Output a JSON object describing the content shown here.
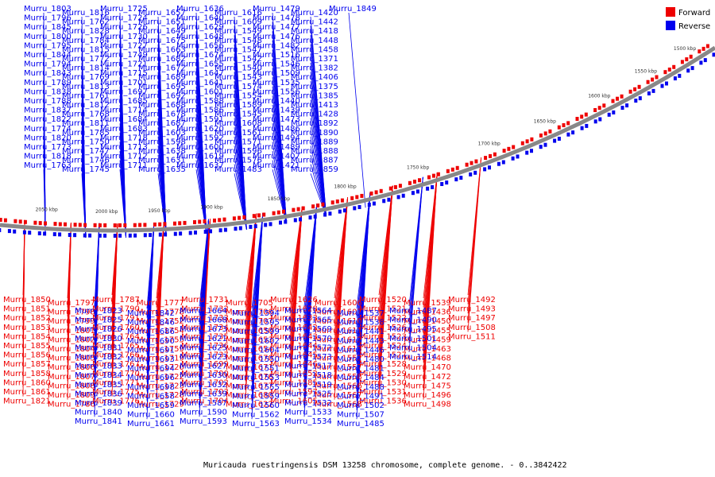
{
  "caption": "Muricauda ruestringensis DSM 13258 chromosome, complete genome. - 0..3842422",
  "legend": [
    {
      "label": "Forward",
      "color": "#ee0000"
    },
    {
      "label": "Reverse",
      "color": "#0000ee"
    }
  ],
  "colors": {
    "forward": "#ee0000",
    "reverse": "#0000ee",
    "backbone": "#888888",
    "line_forward": "#ee0000",
    "line_reverse": "#0000ee"
  },
  "ticks": [
    "2050 kbp",
    "2000 kbp",
    "1950 kbp",
    "1900 kbp",
    "1850 kbp",
    "1800 kbp",
    "1750 kbp",
    "1700 kbp",
    "1650 kbp",
    "1600 kbp",
    "1550 kbp",
    "1500 kbp"
  ],
  "reverse_genes": [
    "Murru_1803",
    "Murru_1796",
    "Murru_1845",
    "Murru_1800",
    "Murru_1795",
    "Murru_1844",
    "Murru_1794",
    "Murru_1843",
    "Murru_1789",
    "Murru_1838",
    "Murru_1788",
    "Murru_1837",
    "Murru_1822",
    "Murru_1774",
    "Murru_1820",
    "Murru_1773",
    "Murru_1818",
    "Murru_1763",
    "Murru_1816",
    "Murru_1762",
    "Murru_1828",
    "Murru_1784",
    "Murru_1815",
    "Murru_1772",
    "Murru_1814",
    "Murru_1769",
    "Murru_1813",
    "Murru_1761",
    "Murru_1812",
    "Murru_1768",
    "Murru_1811",
    "Murru_1785",
    "Murru_1750",
    "Murru_1747",
    "Murru_1746",
    "Murru_1745",
    "Murru_1725",
    "Murru_1724",
    "Murru_1726",
    "Murru_1730",
    "Murru_1727",
    "Murru_1749",
    "Murru_1721",
    "Murru_1715",
    "Murru_1701",
    "Murru_1697",
    "Murru_1685",
    "Murru_1714",
    "Murru_1684",
    "Murru_1683",
    "Murru_1718",
    "Murru_1713",
    "Murru_1712",
    "Murru_1711",
    "Murru_1657",
    "Murru_1651",
    "Murru_1649",
    "Murru_1675",
    "Murru_1663",
    "Murru_1682",
    "Murru_1672",
    "Murru_1689",
    "Murru_1695",
    "Murru_1692",
    "Murru_1688",
    "Murru_1678",
    "Murru_1687",
    "Murru_1603",
    "Murru_1598",
    "Murru_1638",
    "Murru_1631",
    "Murru_1635",
    "Murru_1636",
    "Murru_1640",
    "Murru_1629",
    "Murru_1648",
    "Murru_1656",
    "Murru_1674",
    "Murru_1655",
    "Murru_1647",
    "Murru_1641",
    "Murru_1601",
    "Murru_1588",
    "Murru_1586",
    "Murru_1591",
    "Murru_1620",
    "Murru_1592",
    "Murru_1600",
    "Murru_1619",
    "Murru_1637",
    "Murru_1616",
    "Murru_1609",
    "Murru_1549",
    "Murru_1548",
    "Murru_1547",
    "Murru_1542",
    "Murru_1540",
    "Murru_1543",
    "Murru_1574",
    "Murru_1554",
    "Murru_1589",
    "Murru_1545",
    "Murru_1608",
    "Murru_1561",
    "Murru_1571",
    "Murru_1596",
    "Murru_1576",
    "Murru_1483",
    "Murru_1479",
    "Murru_1478",
    "Murru_1477",
    "Murru_1476",
    "Murru_1482",
    "Murru_1516",
    "Murru_1546",
    "Murru_1509",
    "Murru_1535",
    "Murru_1556",
    "Murru_1440",
    "Murru_1439",
    "Murru_1473",
    "Murru_1486",
    "Murru_1494",
    "Murru_1489",
    "Murru_1407",
    "Murru_1421",
    "Murru_1420",
    "Murru_1442",
    "Murru_1418",
    "Murru_1448",
    "Murru_1458",
    "Murru_1371",
    "Murru_1382",
    "Murru_1406",
    "Murru_1375",
    "Murru_1385",
    "Murru_1413",
    "Murru_1428",
    "Murru_1892",
    "Murru_1890",
    "Murru_1889",
    "Murru_1888",
    "Murru_1887",
    "Murru_1859",
    "Murru_1849"
  ],
  "forward_genes": [
    "Murru_1850",
    "Murru_1851",
    "Murru_1852",
    "Murru_1853",
    "Murru_1854",
    "Murru_1855",
    "Murru_1856",
    "Murru_1857",
    "Murru_1858",
    "Murru_1860",
    "Murru_1861",
    "Murru_1821",
    "Murru_1797",
    "Murru_1798",
    "Murru_1799",
    "Murru_1801",
    "Murru_1802",
    "Murru_1804",
    "Murru_1805",
    "Murru_1806",
    "Murru_1807",
    "Murru_1808",
    "Murru_1809",
    "Murru_1786",
    "Murru_1787",
    "Murru_1790",
    "Murru_1791",
    "Murru_1760",
    "Murru_1764",
    "Murru_1765",
    "Murru_1766",
    "Murru_1767",
    "Murru_1770",
    "Murru_1771",
    "Murru_1775",
    "Murru_1776",
    "Murru_1777",
    "Murru_1778",
    "Murru_1752",
    "Murru_1754",
    "Murru_1755",
    "Murru_1759",
    "Murru_1719",
    "Murru_1720",
    "Murru_1722",
    "Murru_1723",
    "Murru_1728",
    "Murru_1729",
    "Murru_1731",
    "Murru_1732",
    "Murru_1733",
    "Murru_1734",
    "Murru_1735",
    "Murru_1736",
    "Murru_1737",
    "Murru_1699",
    "Murru_1700",
    "Murru_1702",
    "Murru_1703",
    "Murru_1704",
    "Murru_1705",
    "Murru_1706",
    "Murru_1707",
    "Murru_1650",
    "Murru_1653",
    "Murru_1654",
    "Murru_1670",
    "Murru_1671",
    "Murru_1676",
    "Murru_1677",
    "Murru_1680",
    "Murru_1622",
    "Murru_1626",
    "Murru_1628",
    "Murru_1633",
    "Murru_1642",
    "Murru_1643",
    "Murru_1644",
    "Murru_1645",
    "Murru_1646",
    "Murru_1652",
    "Murru_1585",
    "Murru_1597",
    "Murru_1605",
    "Murru_1606",
    "Murru_1607",
    "Murru_1610",
    "Murru_1611",
    "Murru_1612",
    "Murru_1613",
    "Murru_1552",
    "Murru_1557",
    "Murru_1558",
    "Murru_1566",
    "Murru_1567",
    "Murru_1568",
    "Murru_1520",
    "Murru_1521",
    "Murru_1522",
    "Murru_1526",
    "Murru_1523",
    "Murru_1524",
    "Murru_1527",
    "Murru_1528",
    "Murru_1529",
    "Murru_1530",
    "Murru_1531",
    "Murru_1536",
    "Murru_1539",
    "Murru_1436",
    "Murru_1450",
    "Murru_1455",
    "Murru_1459",
    "Murru_1463",
    "Murru_1468",
    "Murru_1470",
    "Murru_1472",
    "Murru_1475",
    "Murru_1496",
    "Murru_1498",
    "Murru_1492",
    "Murru_1493",
    "Murru_1497",
    "Murru_1508",
    "Murru_1511"
  ],
  "reverse_lower_genes": [
    "Murru_1823",
    "Murru_1825",
    "Murru_1826",
    "Murru_1830",
    "Murru_1831",
    "Murru_1832",
    "Murru_1833",
    "Murru_1834",
    "Murru_1835",
    "Murru_1836",
    "Murru_1839",
    "Murru_1840",
    "Murru_1841",
    "Murru_1842",
    "Murru_1846",
    "Murru_1686",
    "Murru_1690",
    "Murru_1691",
    "Murru_1693",
    "Murru_1694",
    "Murru_1696",
    "Murru_1698",
    "Murru_1658",
    "Murru_1659",
    "Murru_1660",
    "Murru_1661",
    "Murru_1664",
    "Murru_1668",
    "Murru_1673",
    "Murru_1621",
    "Murru_1625",
    "Murru_1623",
    "Murru_1627",
    "Murru_1630",
    "Murru_1632",
    "Murru_1639",
    "Murru_1587",
    "Murru_1590",
    "Murru_1593",
    "Murru_1594",
    "Murru_1595",
    "Murru_1599",
    "Murru_1602",
    "Murru_1604",
    "Murru_1550",
    "Murru_1551",
    "Murru_1553",
    "Murru_1555",
    "Murru_1559",
    "Murru_1560",
    "Murru_1562",
    "Murru_1563",
    "Murru_1564",
    "Murru_1565",
    "Murru_1569",
    "Murru_1570",
    "Murru_1572",
    "Murru_1573",
    "Murru_1517",
    "Murru_1518",
    "Murru_1519",
    "Murru_1525",
    "Murru_1532",
    "Murru_1533",
    "Murru_1534",
    "Murru_1537",
    "Murru_1538",
    "Murru_1441",
    "Murru_1443",
    "Murru_1446",
    "Murru_1480",
    "Murru_1481",
    "Murru_1484",
    "Murru_1488",
    "Murru_1491",
    "Murru_1502",
    "Murru_1507",
    "Murru_1485",
    "Murru_1487",
    "Murru_1490",
    "Murru_1495",
    "Murru_1501",
    "Murru_1504",
    "Murru_1514"
  ]
}
